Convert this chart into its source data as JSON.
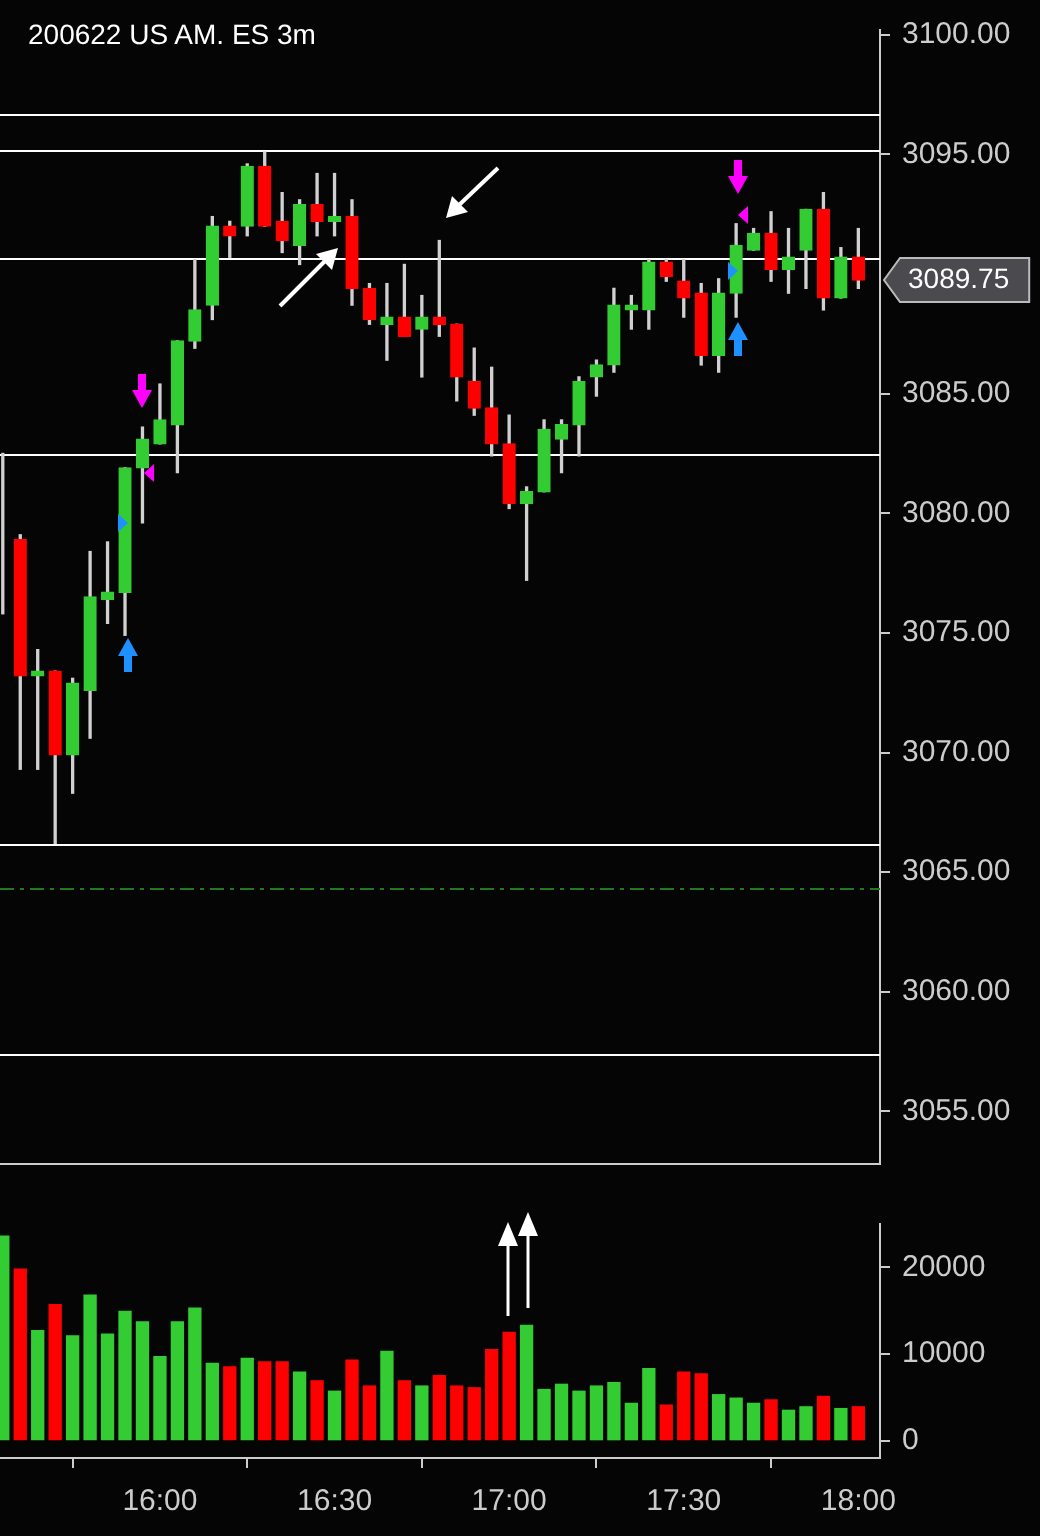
{
  "chart_data": [
    {
      "type": "candlestick",
      "title": "200622 US AM. ES 3m",
      "x": [
        15.55,
        15.6,
        15.65,
        15.7,
        15.75,
        15.8,
        15.85,
        15.9,
        15.95,
        16.0,
        16.05,
        16.1,
        16.15,
        16.2,
        16.25,
        16.3,
        16.35,
        16.4,
        16.45,
        16.5,
        16.55,
        16.6,
        16.65,
        16.7,
        16.75,
        16.8,
        16.85,
        16.9,
        16.95,
        17.0,
        17.05,
        17.1,
        17.15,
        17.2,
        17.25,
        17.3,
        17.35,
        17.4,
        17.45,
        17.5,
        17.55,
        17.6,
        17.65,
        17.7,
        17.75,
        17.8,
        17.85,
        17.9,
        17.95,
        18.0
      ],
      "ohlc": [
        [
          3078.9,
          3082.5,
          3075.8,
          3078.9
        ],
        [
          3078.9,
          3079.1,
          3069.3,
          3073.2
        ],
        [
          3073.2,
          3074.3,
          3069.3,
          3073.4
        ],
        [
          3073.4,
          3073.4,
          3066.2,
          3069.9
        ],
        [
          3069.9,
          3073.1,
          3068.3,
          3072.9
        ],
        [
          3072.6,
          3078.4,
          3070.6,
          3076.5
        ],
        [
          3076.4,
          3078.8,
          3075.4,
          3076.7
        ],
        [
          3076.7,
          3081.9,
          3074.9,
          3081.9
        ],
        [
          3081.9,
          3083.6,
          3079.6,
          3083.1
        ],
        [
          3082.9,
          3085.4,
          3082.9,
          3083.9
        ],
        [
          3083.7,
          3087.2,
          3081.7,
          3087.2
        ],
        [
          3087.2,
          3090.6,
          3086.9,
          3088.5
        ],
        [
          3088.7,
          3092.4,
          3088.1,
          3092.0
        ],
        [
          3092.0,
          3092.2,
          3090.7,
          3091.6
        ],
        [
          3092.0,
          3094.6,
          3091.6,
          3094.5
        ],
        [
          3094.5,
          3095.1,
          3092.0,
          3092.0
        ],
        [
          3092.2,
          3093.4,
          3090.9,
          3091.4
        ],
        [
          3091.2,
          3093.1,
          3090.4,
          3092.9
        ],
        [
          3092.9,
          3094.2,
          3091.6,
          3092.2
        ],
        [
          3092.2,
          3094.2,
          3091.6,
          3092.4
        ],
        [
          3092.4,
          3093.1,
          3088.7,
          3089.4
        ],
        [
          3089.4,
          3089.6,
          3087.9,
          3088.1
        ],
        [
          3087.9,
          3089.6,
          3086.4,
          3088.2
        ],
        [
          3088.2,
          3090.4,
          3087.4,
          3087.4
        ],
        [
          3087.7,
          3089.1,
          3085.7,
          3088.2
        ],
        [
          3088.2,
          3091.4,
          3087.4,
          3087.9
        ],
        [
          3087.9,
          3087.9,
          3084.7,
          3085.7
        ],
        [
          3085.5,
          3086.9,
          3084.1,
          3084.4
        ],
        [
          3084.4,
          3086.1,
          3082.4,
          3082.9
        ],
        [
          3082.9,
          3084.1,
          3080.2,
          3080.4
        ],
        [
          3080.4,
          3081.1,
          3077.2,
          3080.9
        ],
        [
          3080.9,
          3083.9,
          3080.9,
          3083.5
        ],
        [
          3083.1,
          3083.9,
          3081.7,
          3083.7
        ],
        [
          3083.7,
          3085.7,
          3082.4,
          3085.5
        ],
        [
          3085.7,
          3086.4,
          3084.9,
          3086.2
        ],
        [
          3086.2,
          3089.4,
          3085.9,
          3088.7
        ],
        [
          3088.5,
          3089.1,
          3087.7,
          3088.7
        ],
        [
          3088.5,
          3090.6,
          3087.7,
          3090.5
        ],
        [
          3090.5,
          3090.6,
          3089.7,
          3089.9
        ],
        [
          3089.7,
          3090.6,
          3088.2,
          3089.0
        ],
        [
          3089.2,
          3089.6,
          3086.2,
          3086.6
        ],
        [
          3086.6,
          3089.8,
          3085.9,
          3089.2
        ],
        [
          3089.2,
          3092.1,
          3088.2,
          3091.2
        ],
        [
          3091.0,
          3091.9,
          3091.0,
          3091.7
        ],
        [
          3091.7,
          3092.6,
          3089.7,
          3090.2
        ],
        [
          3090.2,
          3091.9,
          3089.2,
          3090.7
        ],
        [
          3091.0,
          3092.7,
          3089.4,
          3092.7
        ],
        [
          3092.7,
          3093.4,
          3088.5,
          3089.0
        ],
        [
          3089.0,
          3091.1,
          3089.0,
          3090.7
        ],
        [
          3090.7,
          3091.9,
          3089.4,
          3089.75
        ]
      ],
      "colors": [
        "#33cc33",
        "#ff0000",
        "#33cc33",
        "#ff0000",
        "#33cc33",
        "#33cc33",
        "#33cc33",
        "#33cc33",
        "#33cc33",
        "#33cc33",
        "#33cc33",
        "#33cc33",
        "#33cc33",
        "#ff0000",
        "#33cc33",
        "#ff0000",
        "#ff0000",
        "#33cc33",
        "#ff0000",
        "#33cc33",
        "#ff0000",
        "#ff0000",
        "#33cc33",
        "#ff0000",
        "#33cc33",
        "#ff0000",
        "#ff0000",
        "#ff0000",
        "#ff0000",
        "#ff0000",
        "#33cc33",
        "#33cc33",
        "#33cc33",
        "#33cc33",
        "#33cc33",
        "#33cc33",
        "#33cc33",
        "#33cc33",
        "#ff0000",
        "#ff0000",
        "#ff0000",
        "#33cc33",
        "#33cc33",
        "#33cc33",
        "#ff0000",
        "#33cc33",
        "#33cc33",
        "#ff0000",
        "#33cc33",
        "#ff0000"
      ],
      "xlim": [
        15.542,
        18.062
      ],
      "ylim": [
        3052.8,
        3100.2
      ],
      "yticks": [
        {
          "value": 3055,
          "label": "3055.00"
        },
        {
          "value": 3060,
          "label": "3060.00"
        },
        {
          "value": 3065,
          "label": "3065.00"
        },
        {
          "value": 3070,
          "label": "3070.00"
        },
        {
          "value": 3075,
          "label": "3075.00"
        },
        {
          "value": 3080,
          "label": "3080.00"
        },
        {
          "value": 3085,
          "label": "3085.00"
        },
        {
          "value": 3095,
          "label": "3095.00"
        },
        {
          "value": 3100,
          "label": "3100.00"
        }
      ],
      "ref_lines": [
        {
          "axis": "y",
          "value": 3096.7,
          "color": "#ffffff"
        },
        {
          "axis": "y",
          "value": 3095.2,
          "color": "#ffffff"
        },
        {
          "axis": "y",
          "value": 3090.7,
          "color": "#ffffff"
        },
        {
          "axis": "y",
          "value": 3082.5,
          "color": "#ffffff"
        },
        {
          "axis": "y",
          "value": 3066.2,
          "color": "#ffffff"
        },
        {
          "axis": "y",
          "value": 3057.4,
          "color": "#ffffff"
        },
        {
          "axis": "y",
          "value": 3064.3,
          "color": "#1f7a1f",
          "line_style": "dashed"
        }
      ],
      "annotations": [
        "3089.75"
      ],
      "tick_labels": "y",
      "grid": false,
      "legend": false
    },
    {
      "type": "bar",
      "x": [
        15.55,
        15.6,
        15.65,
        15.7,
        15.75,
        15.8,
        15.85,
        15.9,
        15.95,
        16.0,
        16.05,
        16.1,
        16.15,
        16.2,
        16.25,
        16.3,
        16.35,
        16.4,
        16.45,
        16.5,
        16.55,
        16.6,
        16.65,
        16.7,
        16.75,
        16.8,
        16.85,
        16.9,
        16.95,
        17.0,
        17.05,
        17.1,
        17.15,
        17.2,
        17.25,
        17.3,
        17.35,
        17.4,
        17.45,
        17.5,
        17.55,
        17.6,
        17.65,
        17.7,
        17.75,
        17.8,
        17.85,
        17.9,
        17.95,
        18.0
      ],
      "values": [
        23600,
        19800,
        12700,
        15700,
        12100,
        16800,
        12300,
        14900,
        13700,
        9700,
        13700,
        15300,
        8900,
        8500,
        9500,
        9100,
        9100,
        7900,
        6900,
        5700,
        9300,
        6300,
        10300,
        6900,
        6300,
        7500,
        6300,
        6100,
        10500,
        12500,
        13300,
        5900,
        6500,
        5700,
        6300,
        6700,
        4300,
        8300,
        4100,
        7900,
        7700,
        5300,
        4900,
        4300,
        4700,
        3500,
        3900,
        5100,
        3700,
        3900
      ],
      "colors": [
        "#33cc33",
        "#ff0000",
        "#33cc33",
        "#ff0000",
        "#33cc33",
        "#33cc33",
        "#33cc33",
        "#33cc33",
        "#33cc33",
        "#33cc33",
        "#33cc33",
        "#33cc33",
        "#33cc33",
        "#ff0000",
        "#33cc33",
        "#ff0000",
        "#ff0000",
        "#33cc33",
        "#ff0000",
        "#33cc33",
        "#ff0000",
        "#ff0000",
        "#33cc33",
        "#ff0000",
        "#33cc33",
        "#ff0000",
        "#ff0000",
        "#ff0000",
        "#ff0000",
        "#ff0000",
        "#33cc33",
        "#33cc33",
        "#33cc33",
        "#33cc33",
        "#33cc33",
        "#33cc33",
        "#33cc33",
        "#33cc33",
        "#ff0000",
        "#ff0000",
        "#ff0000",
        "#33cc33",
        "#33cc33",
        "#33cc33",
        "#ff0000",
        "#33cc33",
        "#33cc33",
        "#ff0000",
        "#33cc33",
        "#ff0000"
      ],
      "xlim": [
        15.542,
        18.062
      ],
      "xticks": [
        {
          "value": 16,
          "label": "16:00"
        },
        {
          "value": 16.5,
          "label": "16:30"
        },
        {
          "value": 17,
          "label": "17:00"
        },
        {
          "value": 17.5,
          "label": "17:30"
        },
        {
          "value": 18,
          "label": "18:00"
        }
      ],
      "ylim": [
        -2000,
        25000
      ],
      "yticks": [
        0,
        10000,
        20000
      ],
      "grid": false,
      "legend": false
    }
  ]
}
